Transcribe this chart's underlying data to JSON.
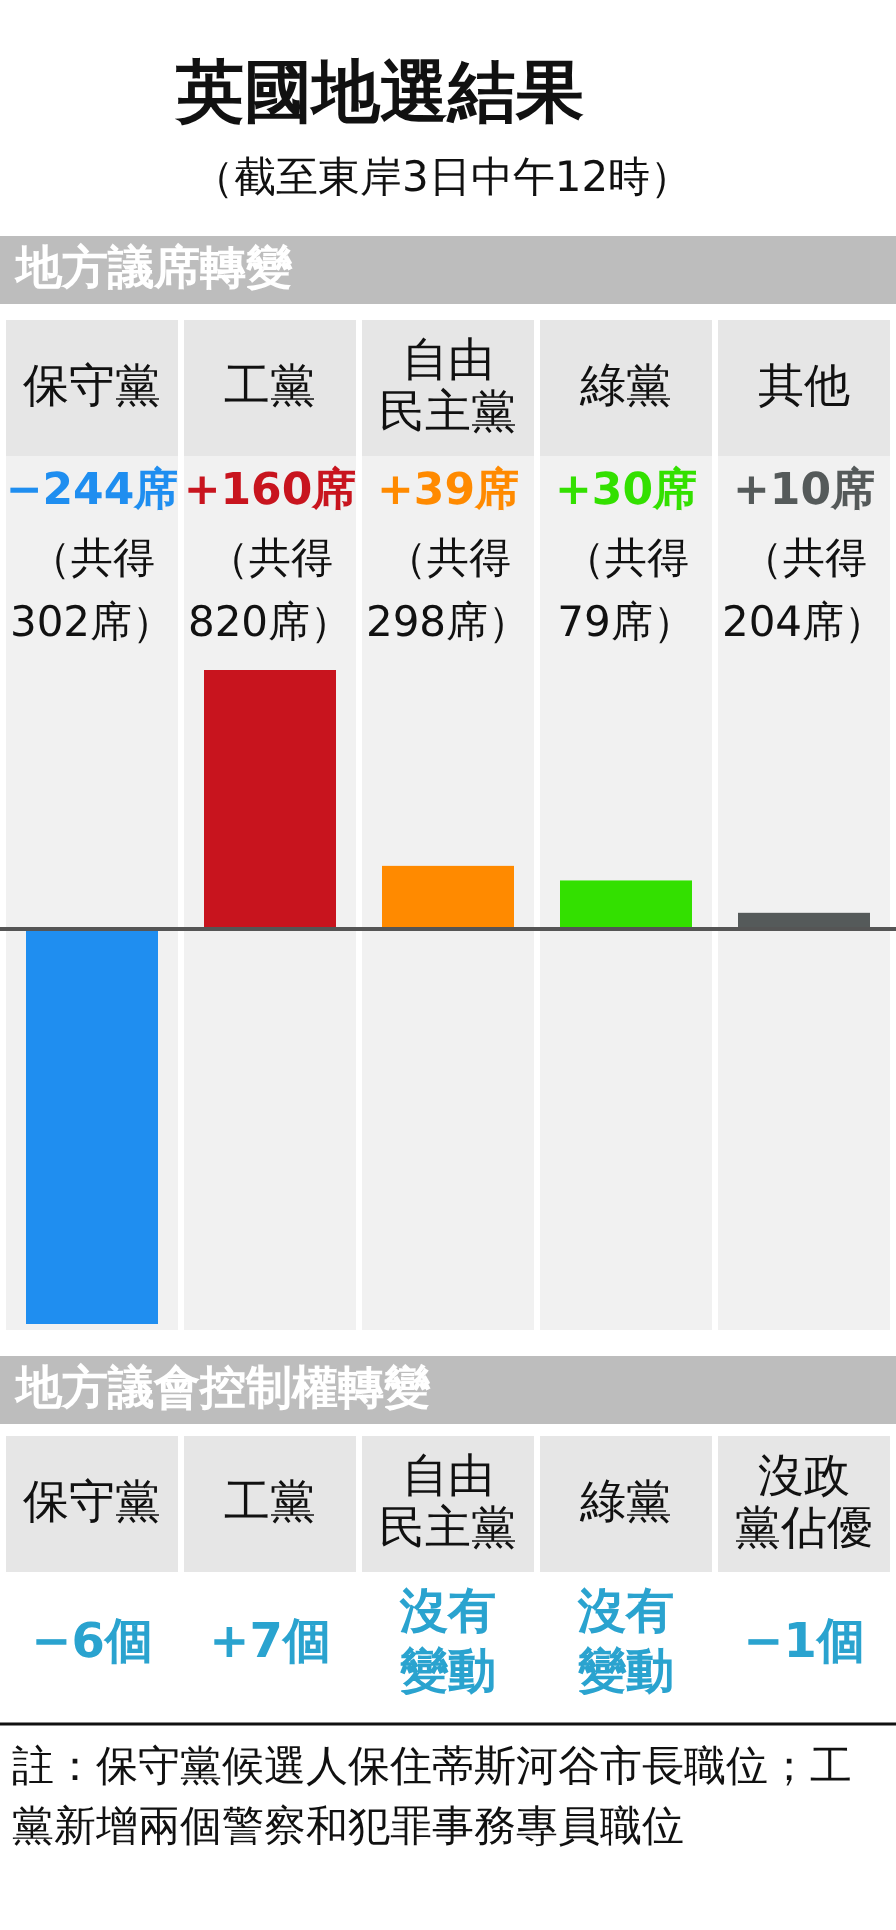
{
  "chart_data": [
    {
      "type": "other",
      "title": "英國地選結果",
      "subtitle": "（截至東岸3日中午12時）"
    },
    {
      "type": "bar",
      "title": "地方議席轉變",
      "categories": [
        "保守黨",
        "工黨",
        "自由民主黨",
        "綠黨",
        "其他"
      ],
      "values": [
        -244,
        160,
        39,
        30,
        10
      ],
      "colors": [
        "#1f8ef0",
        "#c8141e",
        "#ff8a00",
        "#33e000",
        "#555a5a"
      ],
      "value_labels": [
        "−244席",
        "+160席",
        "+39席",
        "+30席",
        "+10席"
      ],
      "annotations": [
        "（共得302席）",
        "（共得820席）",
        "（共得298席）",
        "（共得79席）",
        "（共得204席）"
      ]
    },
    {
      "type": "other",
      "title": "地方議會控制權轉變",
      "categories": [
        "保守黨",
        "工黨",
        "自由民主黨",
        "綠黨",
        "沒政黨佔優"
      ],
      "value_labels": [
        "−6個",
        "+7個",
        "沒有變動",
        "沒有變動",
        "−1個"
      ],
      "color": "#2aa3cf",
      "annotations": [
        "註：保守黨候選人保住蒂斯河谷市長職位；工黨新增兩個警察和犯罪事務專員職位"
      ]
    }
  ]
}
